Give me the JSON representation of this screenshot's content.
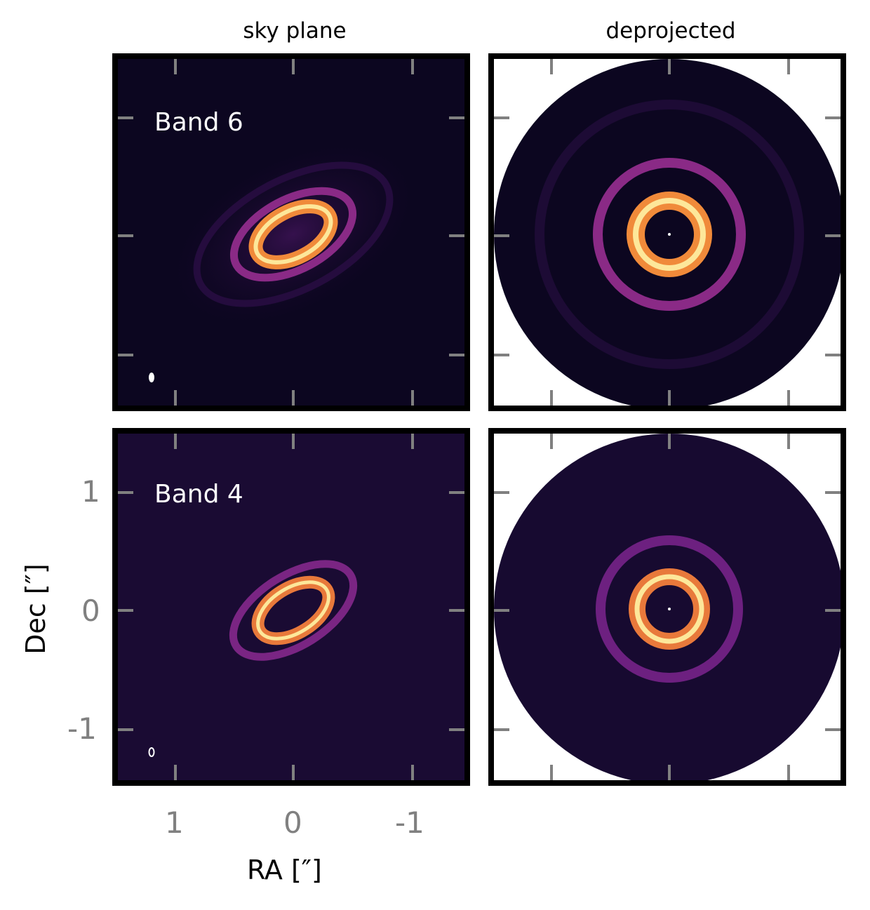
{
  "titles": {
    "left": "sky plane",
    "right": "deprojected"
  },
  "panels": {
    "sky_b6": {
      "band_label": "Band 6"
    },
    "deproj_b6": {},
    "sky_b4": {
      "band_label": "Band 4"
    },
    "deproj_b4": {}
  },
  "axes": {
    "xlabel": "RA [″]",
    "ylabel": "Dec [″]",
    "xticks": [
      "1",
      "0",
      "-1"
    ],
    "yticks": [
      "1",
      "0",
      "-1"
    ]
  },
  "colors": {
    "background_dark": "#0c0620",
    "ring_outer": "#8a2a86",
    "ring_inner": "#f6a53a",
    "ring_core": "#fde79a",
    "tick": "#808080"
  }
}
